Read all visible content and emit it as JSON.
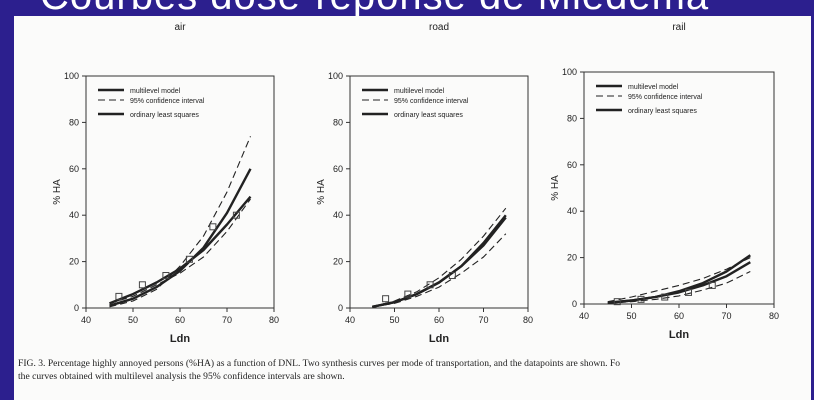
{
  "slide": {
    "title": "Courbes dose-réponse de Miedema"
  },
  "caption": {
    "line1": "FIG. 3. Percentage highly annoyed persons (%HA) as a function of DNL. Two synthesis curves per mode of transportation, and the datapoints are shown. Fo",
    "line2": "the curves obtained with multilevel analysis the 95% confidence intervals are shown."
  },
  "legend": {
    "multilevel": "multilevel model",
    "ci": "95% confidence interval",
    "ols": "ordinary least squares"
  },
  "chart_data": [
    {
      "type": "line",
      "title": "air",
      "xlabel": "Ldn",
      "ylabel": "% HA",
      "xlim": [
        40,
        80
      ],
      "ylim": [
        0,
        100
      ],
      "xticks": [
        40,
        50,
        60,
        70,
        80
      ],
      "yticks": [
        0,
        20,
        40,
        60,
        80,
        100
      ],
      "legend_position": "top-left",
      "series": [
        {
          "name": "multilevel model",
          "x": [
            45,
            50,
            55,
            60,
            65,
            70,
            75
          ],
          "y": [
            1,
            4,
            9,
            16,
            26,
            41,
            60
          ]
        },
        {
          "name": "95% confidence interval",
          "x": [
            45,
            50,
            55,
            60,
            65,
            70,
            75
          ],
          "y": [
            0.5,
            3,
            8,
            18,
            31,
            50,
            74
          ]
        },
        {
          "name": "95% confidence interval",
          "x": [
            45,
            50,
            55,
            60,
            65,
            70,
            75
          ],
          "y": [
            2,
            5,
            10,
            15,
            22,
            33,
            47
          ]
        },
        {
          "name": "ordinary least squares",
          "x": [
            45,
            50,
            55,
            60,
            65,
            70,
            75
          ],
          "y": [
            2,
            6,
            11,
            17,
            25,
            36,
            48
          ]
        }
      ],
      "points": {
        "x": [
          47,
          52,
          57,
          62,
          67,
          72
        ],
        "y": [
          5,
          10,
          14,
          21,
          35,
          40
        ]
      }
    },
    {
      "type": "line",
      "title": "road",
      "xlabel": "Ldn",
      "ylabel": "% HA",
      "xlim": [
        40,
        80
      ],
      "ylim": [
        0,
        100
      ],
      "xticks": [
        40,
        50,
        60,
        70,
        80
      ],
      "yticks": [
        0,
        20,
        40,
        60,
        80,
        100
      ],
      "legend_position": "top-left",
      "series": [
        {
          "name": "multilevel model",
          "x": [
            45,
            50,
            55,
            60,
            65,
            70,
            75
          ],
          "y": [
            0.5,
            2.5,
            6,
            11,
            18,
            27,
            39
          ]
        },
        {
          "name": "95% confidence interval",
          "x": [
            45,
            50,
            55,
            60,
            65,
            70,
            75
          ],
          "y": [
            0.5,
            3,
            7,
            13,
            21,
            31,
            43
          ]
        },
        {
          "name": "95% confidence interval",
          "x": [
            45,
            50,
            55,
            60,
            65,
            70,
            75
          ],
          "y": [
            0.5,
            2,
            5,
            9,
            15,
            22,
            32
          ]
        },
        {
          "name": "ordinary least squares",
          "x": [
            45,
            50,
            55,
            60,
            65,
            70,
            75
          ],
          "y": [
            0.5,
            2.5,
            6,
            11,
            18,
            28,
            40
          ]
        }
      ],
      "points": {
        "x": [
          48,
          53,
          58,
          63
        ],
        "y": [
          4,
          6,
          10,
          14
        ]
      }
    },
    {
      "type": "line",
      "title": "rail",
      "xlabel": "Ldn",
      "ylabel": "% HA",
      "xlim": [
        40,
        80
      ],
      "ylim": [
        0,
        100
      ],
      "xticks": [
        40,
        50,
        60,
        70,
        80
      ],
      "yticks": [
        0,
        20,
        40,
        60,
        80,
        100
      ],
      "legend_position": "top-left",
      "series": [
        {
          "name": "multilevel model",
          "x": [
            45,
            50,
            55,
            60,
            65,
            70,
            75
          ],
          "y": [
            0.5,
            1.5,
            3,
            5,
            8,
            12,
            18
          ]
        },
        {
          "name": "95% confidence interval",
          "x": [
            45,
            50,
            55,
            60,
            65,
            70,
            75
          ],
          "y": [
            1,
            3,
            5.5,
            8,
            11,
            15,
            20
          ]
        },
        {
          "name": "95% confidence interval",
          "x": [
            45,
            50,
            55,
            60,
            65,
            70,
            75
          ],
          "y": [
            0.3,
            1,
            2,
            3.5,
            6,
            9,
            14
          ]
        },
        {
          "name": "ordinary least squares",
          "x": [
            45,
            50,
            55,
            60,
            65,
            70,
            75
          ],
          "y": [
            0.5,
            1.5,
            3,
            5.5,
            9,
            14,
            21
          ]
        }
      ],
      "points": {
        "x": [
          47,
          52,
          57,
          62,
          67
        ],
        "y": [
          1,
          2,
          3,
          5,
          8
        ]
      }
    }
  ]
}
